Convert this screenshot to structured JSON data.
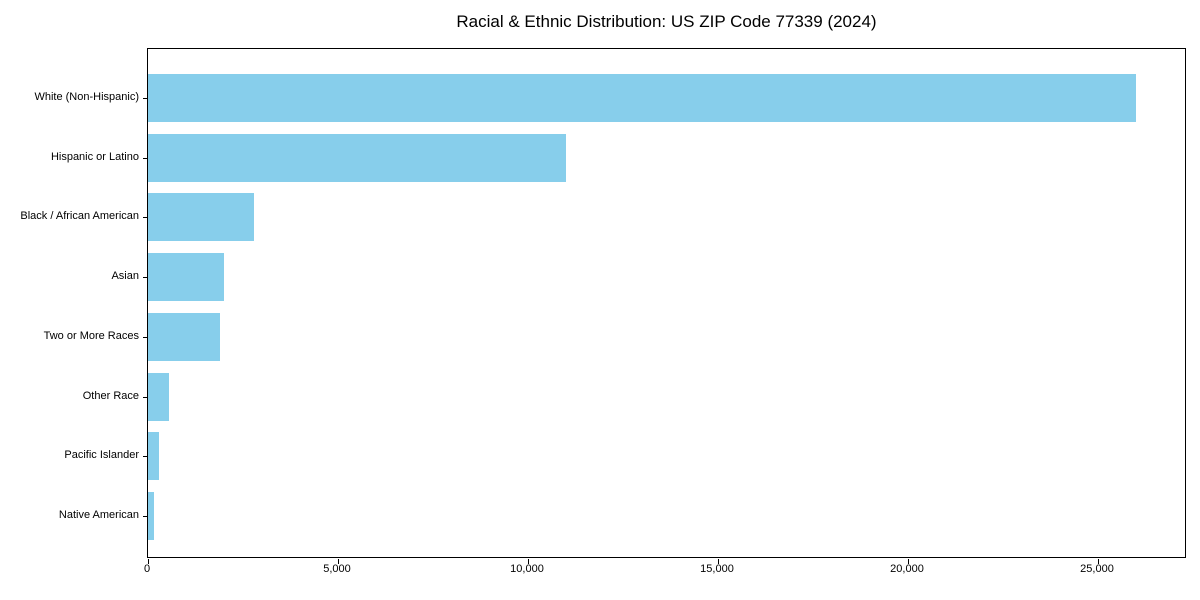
{
  "chart_data": {
    "type": "bar",
    "orientation": "horizontal",
    "title": "Racial & Ethnic Distribution: US ZIP Code 77339 (2024)",
    "categories": [
      "White (Non-Hispanic)",
      "Hispanic or Latino",
      "Black / African American",
      "Asian",
      "Two or More Races",
      "Other Race",
      "Pacific Islander",
      "Native American"
    ],
    "values": [
      26000,
      11000,
      2800,
      2000,
      1900,
      550,
      300,
      150
    ],
    "xlabel": "",
    "ylabel": "",
    "xlim": [
      0,
      27342
    ],
    "x_ticks": [
      0,
      5000,
      10000,
      15000,
      20000,
      25000
    ],
    "x_tick_labels": [
      "0",
      "5,000",
      "10,000",
      "15,000",
      "20,000",
      "25,000"
    ],
    "bar_color": "#87CEEB",
    "background_color": "#ffffff",
    "axis_color": "#000000",
    "grid": false,
    "legend_position": "none"
  }
}
